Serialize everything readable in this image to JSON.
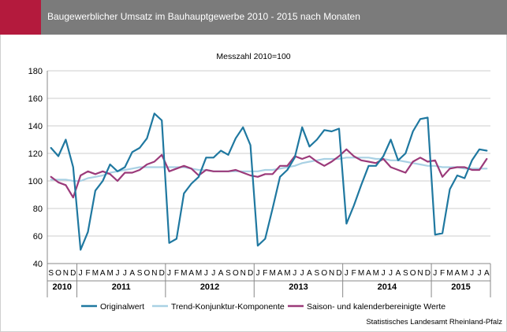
{
  "header": {
    "title": "Baugewerblicher Umsatz im Bauhauptgewerbe 2010 - 2015 nach Monaten"
  },
  "source": "Statistisches Landesamt Rheinland-Pfalz",
  "colors": {
    "header_bg": "#7b7b7b",
    "accent": "#b41a3d",
    "original": "#1f78a0",
    "trend": "#a9d1e4",
    "saison": "#9b3a7a"
  },
  "chart_data": {
    "type": "line",
    "subtitle": "Messzahl 2010=100",
    "ylim": [
      40,
      180
    ],
    "yticks": [
      40,
      60,
      80,
      100,
      120,
      140,
      160,
      180
    ],
    "grid": true,
    "legend_position": "bottom",
    "month_labels": [
      "S",
      "O",
      "N",
      "D",
      "J",
      "F",
      "M",
      "A",
      "M",
      "J",
      "J",
      "A",
      "S",
      "O",
      "N",
      "D",
      "J",
      "F",
      "M",
      "A",
      "M",
      "J",
      "J",
      "A",
      "S",
      "O",
      "N",
      "D",
      "J",
      "F",
      "M",
      "A",
      "M",
      "J",
      "J",
      "A",
      "S",
      "O",
      "N",
      "D",
      "J",
      "F",
      "M",
      "A",
      "M",
      "J",
      "J",
      "A",
      "S",
      "O",
      "N",
      "D",
      "J",
      "F",
      "M",
      "A",
      "M",
      "J",
      "J",
      "A"
    ],
    "year_labels": [
      {
        "label": "2010",
        "start": 0,
        "end": 3
      },
      {
        "label": "2011",
        "start": 4,
        "end": 15
      },
      {
        "label": "2012",
        "start": 16,
        "end": 27
      },
      {
        "label": "2013",
        "start": 28,
        "end": 39
      },
      {
        "label": "2014",
        "start": 40,
        "end": 51
      },
      {
        "label": "2015",
        "start": 52,
        "end": 59
      }
    ],
    "series": [
      {
        "name": "Originalwert",
        "values": [
          124,
          118,
          130,
          110,
          50,
          63,
          93,
          100,
          112,
          107,
          110,
          121,
          124,
          131,
          149,
          144,
          55,
          58,
          91,
          98,
          103,
          117,
          117,
          122,
          119,
          131,
          139,
          126,
          53,
          58,
          80,
          103,
          108,
          117,
          139,
          125,
          130,
          137,
          136,
          138,
          69,
          82,
          97,
          111,
          111,
          118,
          130,
          115,
          120,
          136,
          145,
          146,
          61,
          62,
          94,
          104,
          102,
          115,
          123,
          122
        ]
      },
      {
        "name": "Trend-Konjunktur-Komponente",
        "values": [
          101,
          101,
          101,
          100,
          100,
          102,
          103,
          104,
          106,
          107,
          108,
          109,
          110,
          110,
          110,
          110,
          110,
          110,
          110,
          109,
          108,
          108,
          107,
          107,
          107,
          107,
          107,
          107,
          107,
          108,
          108,
          109,
          110,
          111,
          113,
          114,
          115,
          116,
          116,
          116,
          117,
          117,
          117,
          117,
          116,
          116,
          115,
          115,
          114,
          113,
          112,
          111,
          111,
          110,
          110,
          110,
          109,
          109,
          109,
          109
        ]
      },
      {
        "name": "Saison- und kalenderbereinigte Werte",
        "values": [
          103,
          99,
          97,
          88,
          104,
          107,
          105,
          107,
          105,
          100,
          106,
          106,
          108,
          112,
          114,
          119,
          107,
          109,
          111,
          109,
          104,
          108,
          107,
          107,
          107,
          108,
          106,
          104,
          103,
          105,
          105,
          111,
          111,
          118,
          116,
          118,
          114,
          111,
          114,
          118,
          123,
          118,
          115,
          114,
          113,
          116,
          110,
          108,
          106,
          114,
          117,
          114,
          115,
          103,
          109,
          110,
          110,
          108,
          108,
          116
        ]
      }
    ]
  }
}
